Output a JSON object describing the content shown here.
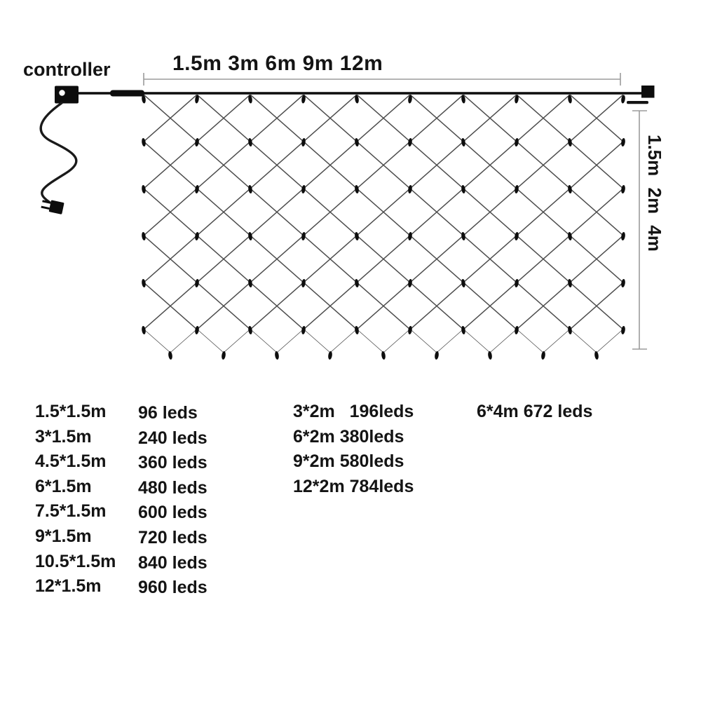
{
  "diagram": {
    "controller_label": "controller",
    "width_dimension_label": "1.5m 3m 6m 9m 12m",
    "height_dimension_label": "1.5m 2m 4m",
    "colors": {
      "wire": "#0d0d0d",
      "mesh_line": "#4d4d4d",
      "dimension_line": "#9b9b9b",
      "text": "#141414",
      "background": "#ffffff"
    }
  },
  "specs": {
    "net_1_5m_high": [
      {
        "size": "1.5*1.5m",
        "leds": "96 leds"
      },
      {
        "size": "3*1.5m",
        "leds": "240 leds"
      },
      {
        "size": "4.5*1.5m",
        "leds": "360 leds"
      },
      {
        "size": "6*1.5m",
        "leds": "480 leds"
      },
      {
        "size": "7.5*1.5m",
        "leds": "600 leds"
      },
      {
        "size": "9*1.5m",
        "leds": "720 leds"
      },
      {
        "size": "10.5*1.5m",
        "leds": "840 leds"
      },
      {
        "size": "12*1.5m",
        "leds": "960 leds"
      }
    ],
    "net_2m_high": [
      "3*2m   196leds",
      "6*2m 380leds",
      "9*2m 580leds",
      "12*2m 784leds"
    ],
    "net_4m_high": "6*4m 672 leds"
  }
}
